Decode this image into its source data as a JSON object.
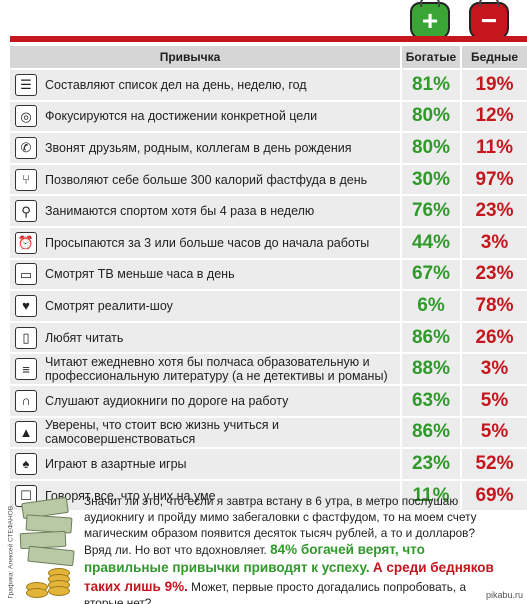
{
  "header": {
    "habit_label": "Привычка",
    "rich_label": "Богатые",
    "poor_label": "Бедные",
    "rich_symbol": "+",
    "poor_symbol": "−",
    "colors": {
      "rich": "#2f9a2a",
      "poor": "#c4161c"
    }
  },
  "rows": [
    {
      "icon": "list-icon",
      "glyph": "☰",
      "text": "Составляют список дел на день, неделю, год",
      "rich": "81%",
      "poor": "19%"
    },
    {
      "icon": "target-icon",
      "glyph": "◎",
      "text": "Фокусируются на достижении конкретной цели",
      "rich": "80%",
      "poor": "12%"
    },
    {
      "icon": "phone-icon",
      "glyph": "✆",
      "text": "Звонят друзьям, родным, коллегам в день рождения",
      "rich": "80%",
      "poor": "11%"
    },
    {
      "icon": "fork-icon",
      "glyph": "⑂",
      "text": "Позволяют себе больше 300 калорий фастфуда в день",
      "rich": "30%",
      "poor": "97%"
    },
    {
      "icon": "runner-icon",
      "glyph": "⚲",
      "text": "Занимаются спортом хотя бы 4 раза в неделю",
      "rich": "76%",
      "poor": "23%"
    },
    {
      "icon": "alarm-clock-icon",
      "glyph": "⏰",
      "text": "Просыпаются за 3 или больше часов до начала работы",
      "rich": "44%",
      "poor": "3%"
    },
    {
      "icon": "tv-icon",
      "glyph": "▭",
      "text": "Смотрят ТВ меньше часа в день",
      "rich": "67%",
      "poor": "23%"
    },
    {
      "icon": "reality-tv-icon",
      "glyph": "♥",
      "text": "Смотрят реалити-шоу",
      "rich": "6%",
      "poor": "78%"
    },
    {
      "icon": "open-book-icon",
      "glyph": "▯",
      "text": "Любят читать",
      "rich": "86%",
      "poor": "26%"
    },
    {
      "icon": "books-icon",
      "glyph": "≡",
      "text": "Читают ежедневно хотя бы полчаса образовательную и профессиональную литературу (а не детективы и романы)",
      "rich": "88%",
      "poor": "3%"
    },
    {
      "icon": "headphones-icon",
      "glyph": "∩",
      "text": "Слушают аудиокниги по дороге на работу",
      "rich": "63%",
      "poor": "5%"
    },
    {
      "icon": "graduation-cap-icon",
      "glyph": "▲",
      "text": "Уверены, что стоит всю жизнь учиться и самосовершенствоваться",
      "rich": "86%",
      "poor": "5%"
    },
    {
      "icon": "spade-icon",
      "glyph": "♠",
      "text": "Играют в азартные игры",
      "rich": "23%",
      "poor": "52%"
    },
    {
      "icon": "speech-bubble-icon",
      "glyph": "☐",
      "text": "Говорят все, что у них на уме",
      "rich": "11%",
      "poor": "69%"
    }
  ],
  "footer": {
    "credit": "Графика: Алексей СТЕФАНОВ.",
    "p1": "Значит ли это, что если я завтра встану в 6 утра, в метро послушаю аудиокнигу и пройду мимо забегаловки с фастфудом, то на моем счету магическим образом появится десяток тысяч рублей, а то и долларов? Вряд ли. Но вот что вдохновляет.",
    "green_text": "84% богачей верят, что правильные привычки приводят к успеху.",
    "red_text": "А среди бедняков таких лишь 9%.",
    "p2": "Может, первые просто догадались попробовать, а вторые нет?",
    "watermark": "pikabu.ru"
  }
}
